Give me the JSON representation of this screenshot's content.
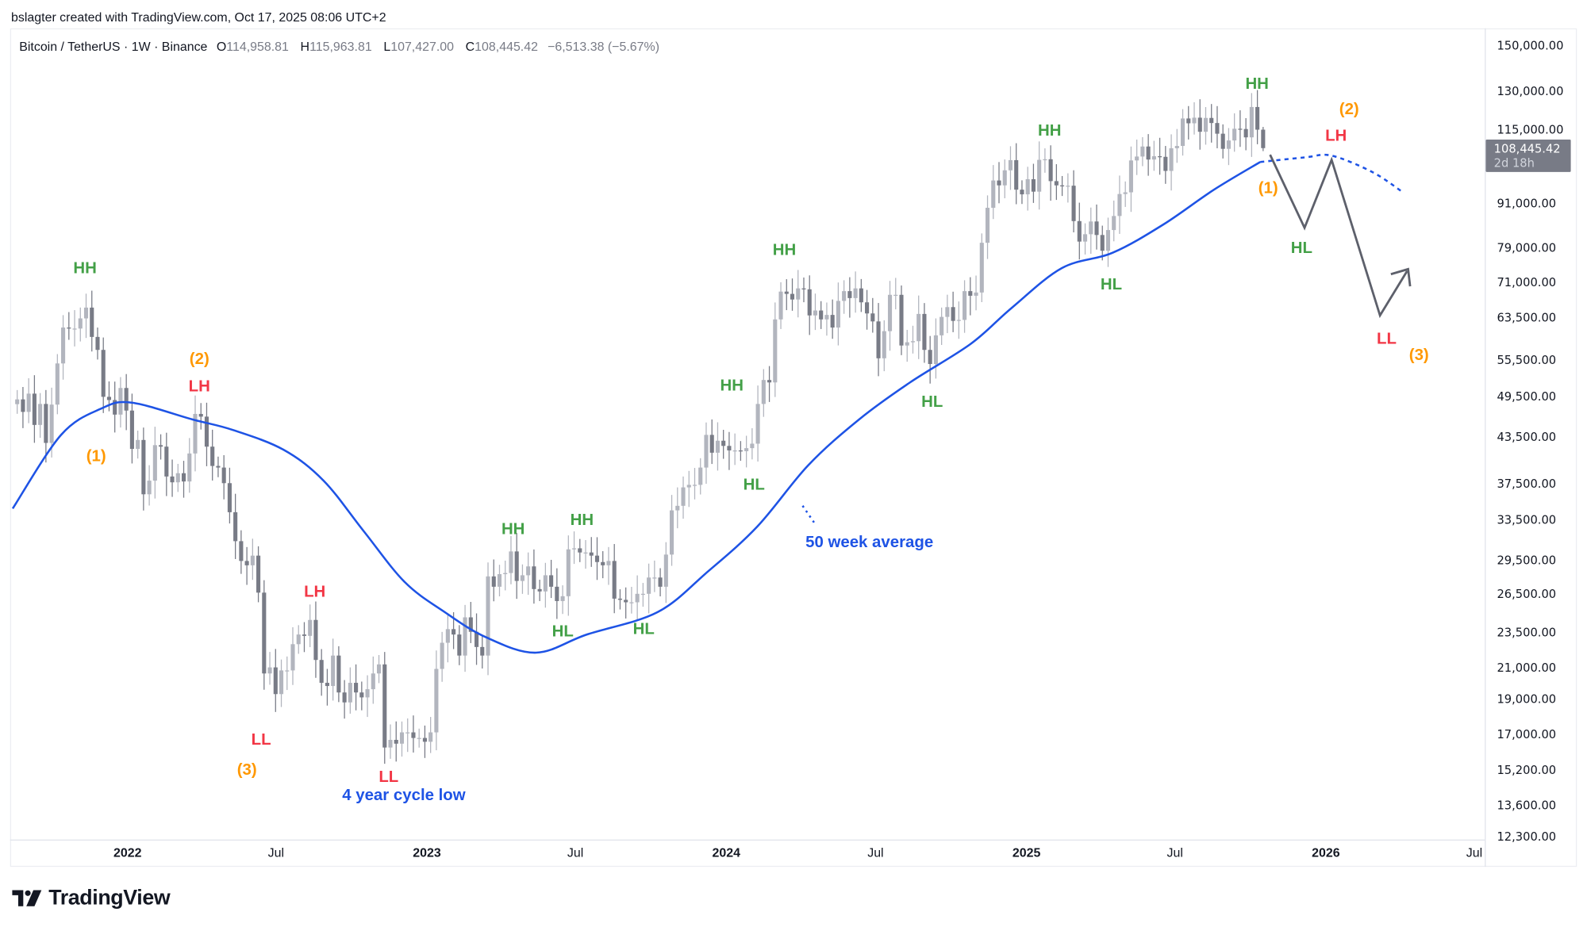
{
  "credit": "bslagter created with TradingView.com, Oct 17, 2025 08:06 UTC+2",
  "legend": {
    "symbol": "Bitcoin / TetherUS · 1W · Binance",
    "open_label": "O",
    "open": "114,958.81",
    "high_label": "H",
    "high": "115,963.81",
    "low_label": "L",
    "low": "107,427.00",
    "close_label": "C",
    "close": "108,445.42",
    "change": "−6,513.38 (−5.67%)"
  },
  "price_tag": {
    "price": "108,445.42",
    "countdown": "2d 18h"
  },
  "logo_text": "TradingView",
  "colors": {
    "candle_up": "#b2b5be",
    "candle_down": "#787b86",
    "ma": "#1e53e5",
    "green": "#43a047",
    "red": "#f23645",
    "orange": "#ff9800",
    "blue": "#1e53e5",
    "projection": "#5d606b"
  },
  "chart_data": {
    "type": "candlestick",
    "symbol": "Bitcoin / TetherUS",
    "interval": "1W",
    "exchange": "Binance",
    "y_scale": "log",
    "ylim": [
      12300,
      150000
    ],
    "y_ticks": [
      "150,000.00",
      "130,000.00",
      "115,000.00",
      "91,000.00",
      "79,000.00",
      "71,000.00",
      "63,500.00",
      "55,500.00",
      "49,500.00",
      "43,500.00",
      "37,500.00",
      "33,500.00",
      "29,500.00",
      "26,500.00",
      "23,500.00",
      "21,000.00",
      "19,000.00",
      "17,000.00",
      "15,200.00",
      "13,600.00",
      "12,300.00"
    ],
    "x_ticks": [
      {
        "label": "2022",
        "date": "2022-01-01",
        "major": true
      },
      {
        "label": "Jul",
        "date": "2022-07-01",
        "major": false
      },
      {
        "label": "2023",
        "date": "2023-01-01",
        "major": true
      },
      {
        "label": "Jul",
        "date": "2023-07-01",
        "major": false
      },
      {
        "label": "2024",
        "date": "2024-01-01",
        "major": true
      },
      {
        "label": "Jul",
        "date": "2024-07-01",
        "major": false
      },
      {
        "label": "2025",
        "date": "2025-01-01",
        "major": true
      },
      {
        "label": "Jul",
        "date": "2025-07-01",
        "major": false
      },
      {
        "label": "2026",
        "date": "2026-01-01",
        "major": true
      },
      {
        "label": "Jul",
        "date": "2026-07-01",
        "major": false
      }
    ],
    "first_week": "2021-08-16",
    "weekly_closes": [
      49000,
      47100,
      49900,
      45200,
      48300,
      42700,
      48200,
      54900,
      61500,
      61300,
      61300,
      63300,
      65500,
      59700,
      57300,
      49400,
      48900,
      46700,
      50800,
      47300,
      41900,
      43100,
      36300,
      37900,
      42400,
      42200,
      38400,
      37700,
      38800,
      37800,
      41300,
      46800,
      46400,
      42200,
      39700,
      39500,
      37600,
      34300,
      31300,
      29400,
      29000,
      29900,
      26600,
      20600,
      21000,
      19300,
      20800,
      20800,
      22600,
      23300,
      23200,
      24400,
      21500,
      20000,
      19800,
      21800,
      19400,
      18800,
      20000,
      19400,
      19100,
      19600,
      20600,
      21200,
      16300,
      16700,
      16500,
      17100,
      17100,
      16800,
      16800,
      16600,
      17100,
      20900,
      22700,
      23700,
      23300,
      21800,
      24600,
      23500,
      22400,
      21800,
      28000,
      27100,
      28200,
      28300,
      30300,
      27600,
      28100,
      28900,
      26900,
      26700,
      28100,
      27100,
      25900,
      26300,
      30500,
      30600,
      30200,
      30200,
      29900,
      29300,
      29000,
      29400,
      26100,
      26000,
      25800,
      25800,
      26500,
      26500,
      27900,
      27900,
      27100,
      30000,
      34500,
      35000,
      37100,
      37400,
      37400,
      39500,
      43800,
      41400,
      43000,
      42300,
      41700,
      41700,
      41600,
      42000,
      42600,
      48300,
      52100,
      51700,
      63100,
      68900,
      68400,
      67200,
      69600,
      69400,
      63900,
      64900,
      63100,
      64000,
      61500,
      66900,
      69000,
      67500,
      69600,
      66600,
      64300,
      62700,
      55800,
      60800,
      68200,
      68200,
      58100,
      58700,
      58900,
      64200,
      57300,
      54800,
      60000,
      63600,
      65600,
      62800,
      63000,
      69000,
      68000,
      68700,
      80400,
      89800,
      97900,
      96400,
      101100,
      104400,
      95100,
      93700,
      98300,
      94500,
      104500,
      104700,
      97700,
      96400,
      96100,
      96300,
      86100,
      80700,
      82600,
      86000,
      82400,
      78400,
      83700,
      87500,
      93800,
      94300,
      104300,
      105600,
      109000,
      104600,
      105700,
      105500,
      100900,
      108400,
      109200,
      119100,
      117300,
      119400,
      114200,
      119300,
      117400,
      113500,
      108200,
      111100,
      115300,
      115200,
      112200,
      123500,
      114958.81,
      108445.42
    ],
    "last_candle": {
      "open": 114958.81,
      "high": 115963.81,
      "low": 107427.0,
      "close": 108445.42
    },
    "ma50_label": "50 week average",
    "ma50": [
      [
        "2021-08-14",
        34700
      ],
      [
        "2021-10-12",
        43800
      ],
      [
        "2021-11-30",
        47600
      ],
      [
        "2022-01-06",
        48500
      ],
      [
        "2022-03-21",
        46000
      ],
      [
        "2022-05-09",
        44500
      ],
      [
        "2022-07-10",
        41800
      ],
      [
        "2022-08-28",
        37900
      ],
      [
        "2022-10-16",
        32300
      ],
      [
        "2022-12-05",
        27500
      ],
      [
        "2023-01-23",
        25000
      ],
      [
        "2023-03-14",
        23100
      ],
      [
        "2023-05-14",
        22000
      ],
      [
        "2023-07-15",
        23300
      ],
      [
        "2023-10-09",
        25000
      ],
      [
        "2023-12-09",
        28400
      ],
      [
        "2024-02-08",
        32800
      ],
      [
        "2024-04-10",
        39800
      ],
      [
        "2024-06-11",
        46000
      ],
      [
        "2024-08-12",
        51700
      ],
      [
        "2024-10-25",
        58400
      ],
      [
        "2024-12-13",
        65300
      ],
      [
        "2025-02-13",
        74200
      ],
      [
        "2025-04-16",
        77900
      ],
      [
        "2025-06-17",
        85200
      ],
      [
        "2025-08-17",
        95000
      ],
      [
        "2025-10-13",
        103800
      ]
    ],
    "ma50_projection": [
      [
        "2025-10-13",
        103800
      ],
      [
        "2025-12-06",
        105300
      ],
      [
        "2026-01-08",
        105900
      ],
      [
        "2026-02-27",
        100500
      ],
      [
        "2026-04-05",
        94300
      ]
    ],
    "projection_path": [
      [
        "2025-10-25",
        106200
      ],
      [
        "2025-12-06",
        84300
      ],
      [
        "2026-01-08",
        104500
      ],
      [
        "2026-03-08",
        63900
      ],
      [
        "2026-04-10",
        73500
      ]
    ],
    "annotations": [
      {
        "text": "HH",
        "color": "green"
      },
      {
        "text": "(2)",
        "color": "orange"
      },
      {
        "text": "LH",
        "color": "red"
      },
      {
        "text": "(1)",
        "color": "orange"
      },
      {
        "text": "LH",
        "color": "red"
      },
      {
        "text": "LL",
        "color": "red"
      },
      {
        "text": "(3)",
        "color": "orange"
      },
      {
        "text": "LL",
        "color": "red"
      },
      {
        "text": "4 year cycle low",
        "color": "blue"
      },
      {
        "text": "HH",
        "color": "green"
      },
      {
        "text": "HH",
        "color": "green"
      },
      {
        "text": "HL",
        "color": "green"
      },
      {
        "text": "HL",
        "color": "green"
      },
      {
        "text": "HH",
        "color": "green"
      },
      {
        "text": "HL",
        "color": "green"
      },
      {
        "text": "HH",
        "color": "green"
      },
      {
        "text": "50 week average",
        "color": "blue"
      },
      {
        "text": "HL",
        "color": "green"
      },
      {
        "text": "HH",
        "color": "green"
      },
      {
        "text": "HL",
        "color": "green"
      },
      {
        "text": "HH",
        "color": "green"
      },
      {
        "text": "(1)",
        "color": "orange"
      },
      {
        "text": "(2)",
        "color": "orange"
      },
      {
        "text": "LH",
        "color": "red"
      },
      {
        "text": "HL",
        "color": "green"
      },
      {
        "text": "LL",
        "color": "red"
      },
      {
        "text": "(3)",
        "color": "orange"
      }
    ]
  }
}
